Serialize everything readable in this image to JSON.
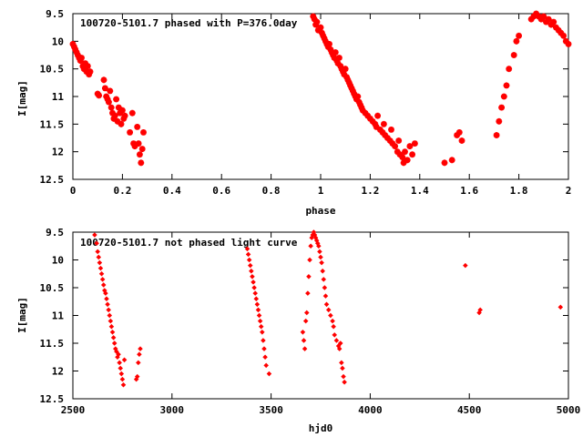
{
  "chart_data": [
    {
      "type": "scatter",
      "title": "100720-5101.7 phased with P=376.0day",
      "xlabel": "phase",
      "ylabel": "I[mag]",
      "xlim": [
        0,
        2
      ],
      "ylim": [
        12.5,
        9.5
      ],
      "y_inverted": true,
      "grid": false,
      "marker_color": "#ff0000",
      "marker": "star",
      "xticks": [
        "0",
        "0.2",
        "0.4",
        "0.6",
        "0.8",
        "1",
        "1.2",
        "1.4",
        "1.6",
        "1.8",
        "2"
      ],
      "yticks": [
        "9.5",
        "10",
        "10.5",
        "11",
        "11.5",
        "12",
        "12.5"
      ],
      "series": [
        {
          "points": [
            [
              0.0,
              10.05
            ],
            [
              0.005,
              10.1
            ],
            [
              0.01,
              10.15
            ],
            [
              0.015,
              10.2
            ],
            [
              0.02,
              10.25
            ],
            [
              0.025,
              10.3
            ],
            [
              0.03,
              10.35
            ],
            [
              0.035,
              10.3
            ],
            [
              0.04,
              10.45
            ],
            [
              0.045,
              10.5
            ],
            [
              0.05,
              10.4
            ],
            [
              0.055,
              10.55
            ],
            [
              0.06,
              10.45
            ],
            [
              0.065,
              10.6
            ],
            [
              0.07,
              10.55
            ],
            [
              0.1,
              10.95
            ],
            [
              0.105,
              10.98
            ],
            [
              0.125,
              10.7
            ],
            [
              0.13,
              10.85
            ],
            [
              0.135,
              11.0
            ],
            [
              0.14,
              11.05
            ],
            [
              0.145,
              11.1
            ],
            [
              0.15,
              10.9
            ],
            [
              0.155,
              11.2
            ],
            [
              0.16,
              11.3
            ],
            [
              0.165,
              11.4
            ],
            [
              0.17,
              11.35
            ],
            [
              0.175,
              11.05
            ],
            [
              0.18,
              11.45
            ],
            [
              0.185,
              11.2
            ],
            [
              0.19,
              11.3
            ],
            [
              0.195,
              11.5
            ],
            [
              0.2,
              11.25
            ],
            [
              0.205,
              11.4
            ],
            [
              0.21,
              11.35
            ],
            [
              0.23,
              11.65
            ],
            [
              0.24,
              11.3
            ],
            [
              0.245,
              11.85
            ],
            [
              0.25,
              11.9
            ],
            [
              0.26,
              11.55
            ],
            [
              0.265,
              11.85
            ],
            [
              0.27,
              12.05
            ],
            [
              0.275,
              12.2
            ],
            [
              0.28,
              11.95
            ],
            [
              0.285,
              11.65
            ],
            [
              0.97,
              9.55
            ],
            [
              0.975,
              9.6
            ],
            [
              0.98,
              9.7
            ],
            [
              0.985,
              9.65
            ],
            [
              0.99,
              9.8
            ],
            [
              1.0,
              9.75
            ],
            [
              1.005,
              9.85
            ],
            [
              1.01,
              9.9
            ],
            [
              1.015,
              9.95
            ],
            [
              1.02,
              10.0
            ],
            [
              1.025,
              10.05
            ],
            [
              1.03,
              10.1
            ],
            [
              1.035,
              10.05
            ],
            [
              1.04,
              10.15
            ],
            [
              1.045,
              10.2
            ],
            [
              1.05,
              10.25
            ],
            [
              1.055,
              10.3
            ],
            [
              1.06,
              10.2
            ],
            [
              1.065,
              10.35
            ],
            [
              1.07,
              10.4
            ],
            [
              1.075,
              10.3
            ],
            [
              1.08,
              10.45
            ],
            [
              1.085,
              10.5
            ],
            [
              1.09,
              10.55
            ],
            [
              1.095,
              10.6
            ],
            [
              1.1,
              10.5
            ],
            [
              1.105,
              10.65
            ],
            [
              1.11,
              10.7
            ],
            [
              1.115,
              10.75
            ],
            [
              1.12,
              10.8
            ],
            [
              1.125,
              10.85
            ],
            [
              1.13,
              10.9
            ],
            [
              1.135,
              10.95
            ],
            [
              1.14,
              11.0
            ],
            [
              1.145,
              11.05
            ],
            [
              1.15,
              11.0
            ],
            [
              1.155,
              11.1
            ],
            [
              1.16,
              11.15
            ],
            [
              1.165,
              11.2
            ],
            [
              1.17,
              11.25
            ],
            [
              1.18,
              11.3
            ],
            [
              1.19,
              11.35
            ],
            [
              1.2,
              11.4
            ],
            [
              1.21,
              11.45
            ],
            [
              1.22,
              11.5
            ],
            [
              1.225,
              11.55
            ],
            [
              1.23,
              11.35
            ],
            [
              1.24,
              11.6
            ],
            [
              1.25,
              11.65
            ],
            [
              1.255,
              11.5
            ],
            [
              1.26,
              11.7
            ],
            [
              1.27,
              11.75
            ],
            [
              1.28,
              11.8
            ],
            [
              1.285,
              11.6
            ],
            [
              1.29,
              11.85
            ],
            [
              1.3,
              11.9
            ],
            [
              1.31,
              12.0
            ],
            [
              1.315,
              11.8
            ],
            [
              1.32,
              12.05
            ],
            [
              1.33,
              12.1
            ],
            [
              1.335,
              12.2
            ],
            [
              1.34,
              12.0
            ],
            [
              1.35,
              12.15
            ],
            [
              1.36,
              11.9
            ],
            [
              1.37,
              12.05
            ],
            [
              1.38,
              11.85
            ],
            [
              1.5,
              12.2
            ],
            [
              1.53,
              12.15
            ],
            [
              1.55,
              11.7
            ],
            [
              1.56,
              11.65
            ],
            [
              1.57,
              11.8
            ],
            [
              1.71,
              11.7
            ],
            [
              1.72,
              11.45
            ],
            [
              1.73,
              11.2
            ],
            [
              1.74,
              11.0
            ],
            [
              1.75,
              10.8
            ],
            [
              1.76,
              10.5
            ],
            [
              1.78,
              10.25
            ],
            [
              1.79,
              10.0
            ],
            [
              1.8,
              9.9
            ],
            [
              1.85,
              9.6
            ],
            [
              1.86,
              9.55
            ],
            [
              1.87,
              9.5
            ],
            [
              1.88,
              9.55
            ],
            [
              1.89,
              9.6
            ],
            [
              1.9,
              9.55
            ],
            [
              1.91,
              9.65
            ],
            [
              1.92,
              9.6
            ],
            [
              1.93,
              9.7
            ],
            [
              1.94,
              9.65
            ],
            [
              1.95,
              9.75
            ],
            [
              1.96,
              9.8
            ],
            [
              1.97,
              9.85
            ],
            [
              1.98,
              9.9
            ],
            [
              1.99,
              10.0
            ],
            [
              2.0,
              10.05
            ]
          ]
        }
      ]
    },
    {
      "type": "scatter",
      "title": "100720-5101.7 not phased light curve",
      "xlabel": "hjd0",
      "ylabel": "I[mag]",
      "xlim": [
        2500,
        5000
      ],
      "ylim": [
        12.5,
        9.5
      ],
      "y_inverted": true,
      "grid": false,
      "marker_color": "#ff0000",
      "marker": "diamond",
      "xticks": [
        "2500",
        "3000",
        "3500",
        "4000",
        "4500",
        "5000"
      ],
      "yticks": [
        "9.5",
        "10",
        "10.5",
        "11",
        "11.5",
        "12",
        "12.5"
      ],
      "series": [
        {
          "points": [
            [
              2610,
              9.55
            ],
            [
              2620,
              9.7
            ],
            [
              2625,
              9.85
            ],
            [
              2630,
              9.95
            ],
            [
              2635,
              10.05
            ],
            [
              2640,
              10.15
            ],
            [
              2645,
              10.25
            ],
            [
              2650,
              10.35
            ],
            [
              2655,
              10.45
            ],
            [
              2660,
              10.55
            ],
            [
              2665,
              10.6
            ],
            [
              2670,
              10.7
            ],
            [
              2675,
              10.8
            ],
            [
              2680,
              10.9
            ],
            [
              2685,
              11.0
            ],
            [
              2690,
              11.1
            ],
            [
              2695,
              11.2
            ],
            [
              2700,
              11.3
            ],
            [
              2705,
              11.4
            ],
            [
              2710,
              11.5
            ],
            [
              2715,
              11.6
            ],
            [
              2720,
              11.65
            ],
            [
              2725,
              11.75
            ],
            [
              2730,
              11.7
            ],
            [
              2735,
              11.85
            ],
            [
              2740,
              11.95
            ],
            [
              2745,
              12.05
            ],
            [
              2750,
              12.15
            ],
            [
              2755,
              12.25
            ],
            [
              2760,
              11.8
            ],
            [
              2820,
              12.15
            ],
            [
              2825,
              12.1
            ],
            [
              2830,
              11.85
            ],
            [
              2835,
              11.7
            ],
            [
              2840,
              11.6
            ],
            [
              3380,
              9.8
            ],
            [
              3385,
              9.9
            ],
            [
              3390,
              10.0
            ],
            [
              3395,
              10.1
            ],
            [
              3400,
              10.2
            ],
            [
              3405,
              10.3
            ],
            [
              3410,
              10.4
            ],
            [
              3415,
              10.5
            ],
            [
              3420,
              10.6
            ],
            [
              3425,
              10.7
            ],
            [
              3430,
              10.8
            ],
            [
              3435,
              10.9
            ],
            [
              3440,
              11.0
            ],
            [
              3445,
              11.1
            ],
            [
              3450,
              11.2
            ],
            [
              3455,
              11.3
            ],
            [
              3460,
              11.45
            ],
            [
              3465,
              11.6
            ],
            [
              3470,
              11.75
            ],
            [
              3475,
              11.9
            ],
            [
              3490,
              12.05
            ],
            [
              3660,
              11.3
            ],
            [
              3665,
              11.45
            ],
            [
              3670,
              11.6
            ],
            [
              3675,
              11.1
            ],
            [
              3680,
              10.95
            ],
            [
              3685,
              10.6
            ],
            [
              3690,
              10.3
            ],
            [
              3695,
              10.0
            ],
            [
              3700,
              9.75
            ],
            [
              3705,
              9.6
            ],
            [
              3710,
              9.55
            ],
            [
              3715,
              9.5
            ],
            [
              3720,
              9.55
            ],
            [
              3725,
              9.6
            ],
            [
              3730,
              9.65
            ],
            [
              3735,
              9.7
            ],
            [
              3740,
              9.75
            ],
            [
              3745,
              9.85
            ],
            [
              3750,
              9.95
            ],
            [
              3755,
              10.05
            ],
            [
              3760,
              10.2
            ],
            [
              3765,
              10.35
            ],
            [
              3770,
              10.5
            ],
            [
              3775,
              10.65
            ],
            [
              3780,
              10.8
            ],
            [
              3790,
              10.9
            ],
            [
              3800,
              11.0
            ],
            [
              3810,
              11.1
            ],
            [
              3815,
              11.2
            ],
            [
              3820,
              11.35
            ],
            [
              3830,
              11.45
            ],
            [
              3840,
              11.55
            ],
            [
              3845,
              11.6
            ],
            [
              3850,
              11.5
            ],
            [
              3855,
              11.85
            ],
            [
              3860,
              11.95
            ],
            [
              3865,
              12.1
            ],
            [
              3870,
              12.2
            ],
            [
              4480,
              10.1
            ],
            [
              4550,
              10.95
            ],
            [
              4555,
              10.9
            ],
            [
              4960,
              10.85
            ]
          ]
        }
      ]
    }
  ]
}
